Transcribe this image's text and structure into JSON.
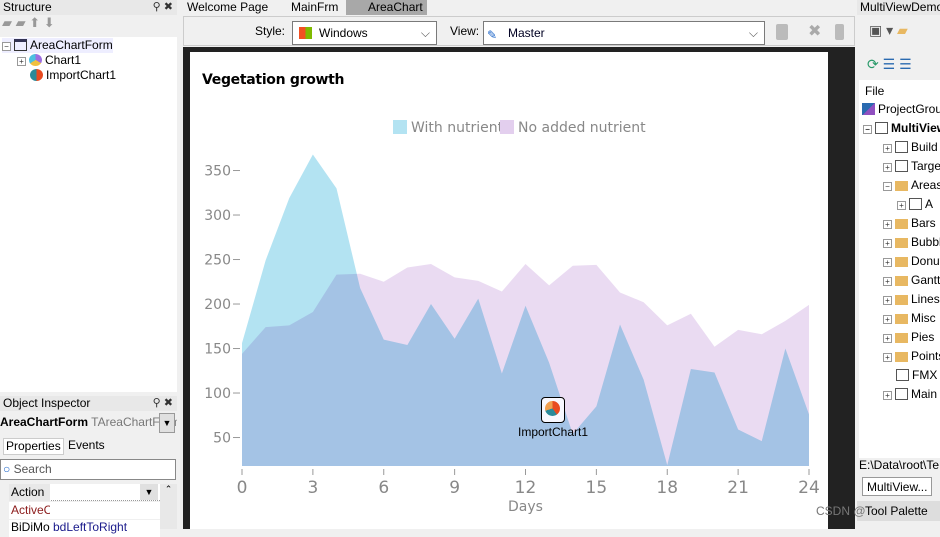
{
  "structure": {
    "title": "Structure",
    "items": [
      "AreaChartForm",
      "Chart1",
      "ImportChart1"
    ]
  },
  "inspector": {
    "title": "Object Inspector",
    "object": "AreaChartForm",
    "object_type": "TAreaChartForm",
    "tabs": [
      "Properties",
      "Events"
    ],
    "search_placeholder": "Search",
    "rows": [
      {
        "name": "Action",
        "value": ""
      },
      {
        "name": "ActiveControl",
        "value": ""
      },
      {
        "name": "BiDiMode",
        "value": "bdLeftToRight"
      }
    ]
  },
  "editor": {
    "tabs": [
      "Welcome Page",
      "MainFrm",
      "AreaChart"
    ],
    "active_tab": "AreaChart",
    "style_label": "Style:",
    "style_value": "Windows",
    "view_label": "View:",
    "view_value": "Master"
  },
  "component": {
    "label": "ImportChart1"
  },
  "project": {
    "title": "MultiViewDemo",
    "file_label": "File",
    "items": [
      "ProjectGroup",
      "MultiView",
      "Build",
      "Targets",
      "Areas",
      "A",
      "Bars",
      "Bubbles",
      "Donuts",
      "Gantt",
      "Lines",
      "Misc",
      "Pies",
      "Points",
      "FMX",
      "Main"
    ],
    "path": "E:\\Data\\root\\Te",
    "tab": "MultiView...",
    "palette": "Tool Palette"
  },
  "watermark": "CSDN @",
  "chart_data": {
    "type": "area",
    "title": "Vegetation growth",
    "xlabel": "Days",
    "ylabel": "",
    "x": [
      0,
      1,
      2,
      3,
      4,
      5,
      6,
      7,
      8,
      9,
      10,
      11,
      12,
      13,
      14,
      15,
      16,
      17,
      18,
      19,
      20,
      21,
      22,
      23,
      24
    ],
    "xticks": [
      0,
      3,
      6,
      9,
      12,
      15,
      18,
      21,
      24
    ],
    "yticks": [
      50,
      100,
      150,
      200,
      250,
      300,
      350
    ],
    "xlim": [
      0,
      24
    ],
    "ylim": [
      18,
      370
    ],
    "grid": false,
    "legend": "top",
    "series": [
      {
        "name": "With nutrient",
        "color": "#b3e3f2",
        "values": [
          156,
          249,
          319,
          368,
          330,
          218,
          160,
          154,
          200,
          161,
          206,
          122,
          198,
          134,
          54,
          85,
          177,
          115,
          19,
          127,
          123,
          59,
          46,
          150,
          76
        ]
      },
      {
        "name": "No added nutrient",
        "color": "#e3cfee",
        "values": [
          144,
          174,
          176,
          191,
          233,
          234,
          225,
          241,
          245,
          230,
          226,
          214,
          245,
          221,
          243,
          244,
          213,
          202,
          176,
          189,
          152,
          171,
          166,
          181,
          199
        ]
      }
    ],
    "overlap_color": "#b3bfe8"
  }
}
